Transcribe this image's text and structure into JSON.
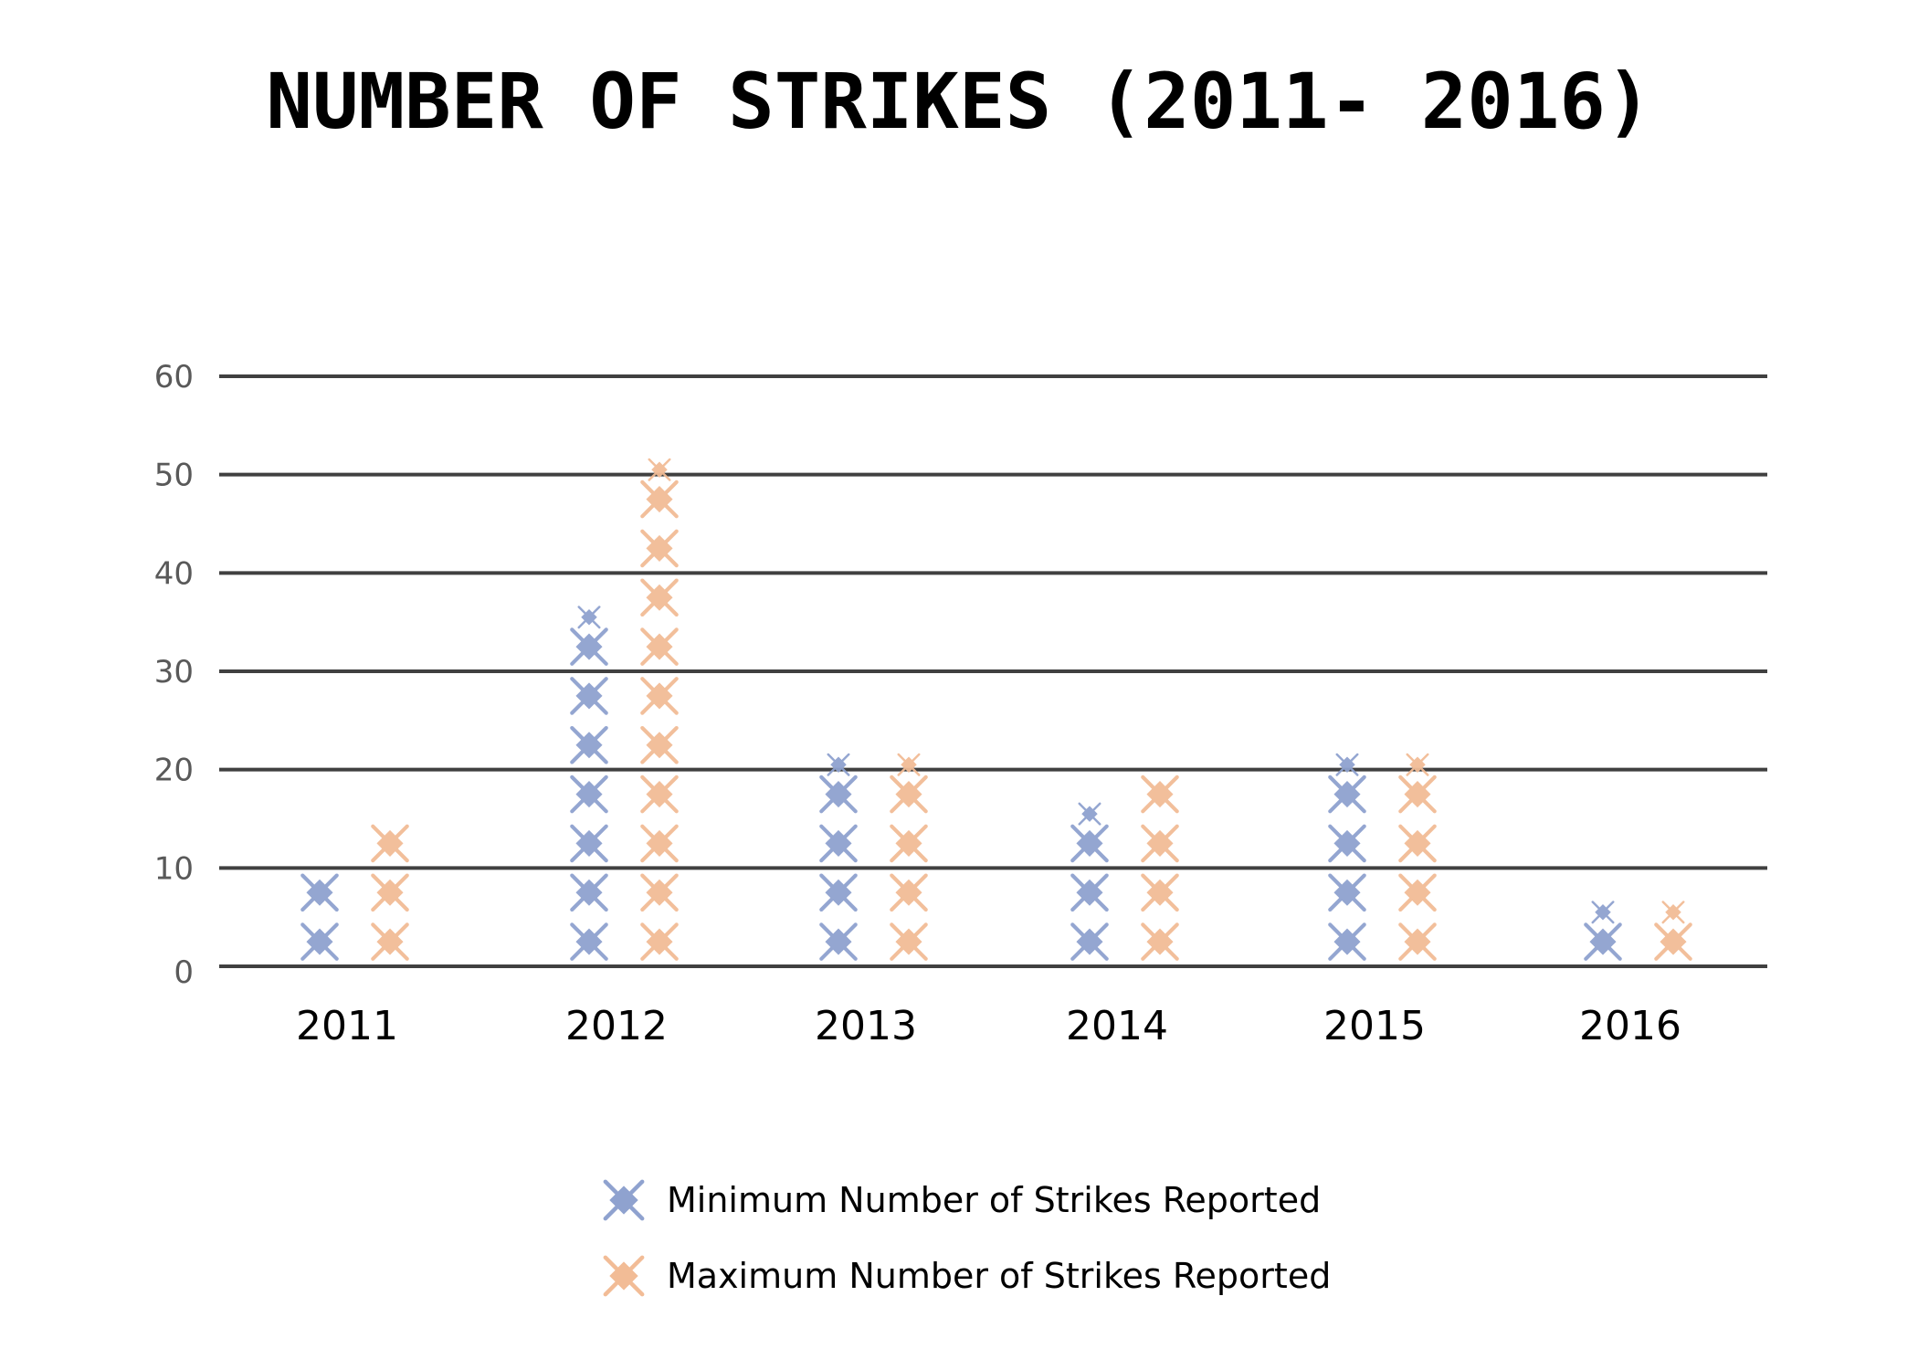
{
  "chart_data": {
    "type": "bar",
    "title": "NUMBER OF STRIKES (2011- 2016)",
    "categories": [
      "2011",
      "2012",
      "2013",
      "2014",
      "2015",
      "2016"
    ],
    "y_ticks": [
      "0",
      "10",
      "20",
      "30",
      "40",
      "50",
      "60"
    ],
    "ylim": [
      0,
      60
    ],
    "grid": true,
    "legend_position": "bottom",
    "series": [
      {
        "name": "Minimum Number of Strikes Reported",
        "values": [
          10,
          36,
          21,
          16,
          21,
          6
        ],
        "color": "#8fa2cf"
      },
      {
        "name": "Maximum Number of Strikes Reported",
        "values": [
          15,
          51,
          21,
          20,
          21,
          6
        ],
        "color": "#f2bc96"
      }
    ]
  }
}
